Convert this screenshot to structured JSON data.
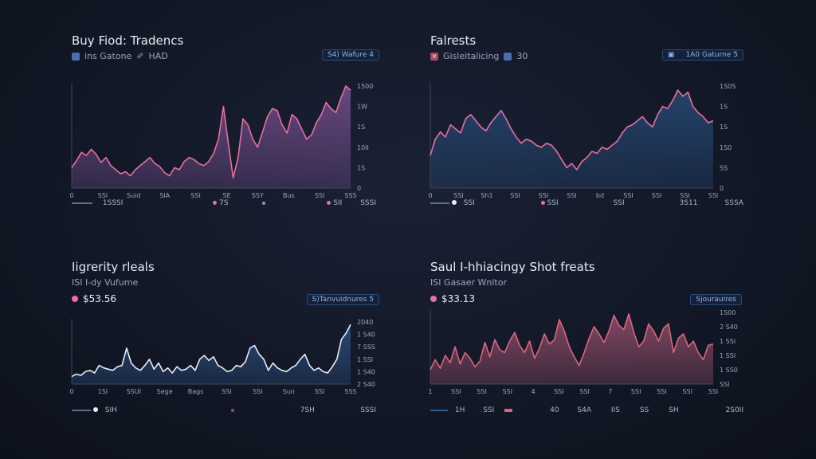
{
  "colors": {
    "pink": "#e86fa1",
    "white": "#e8ecf5",
    "red": "#d9667e",
    "blue": "#2f5c96"
  },
  "chart_data": [
    {
      "type": "area",
      "title": "Buy Fiod: Tradencs",
      "sub_label": "ins Gatone",
      "sub_extra": "HAD",
      "pill": "S4) Wafure 4",
      "x_ticks": [
        "0",
        "SSI",
        "Suid",
        "SIA",
        "SSI",
        "SE",
        "SSY",
        "Bus",
        "SSI",
        "SSS"
      ],
      "y_ticks": [
        "1500",
        "1W",
        "1S",
        "10II",
        "1S",
        "0"
      ],
      "legend": [
        "1SSSI",
        "7S",
        "SII"
      ],
      "legend_right": "SSSI",
      "color": "#e86fa1",
      "fill": "#6e4a86",
      "ylim": [
        0,
        100
      ],
      "values": [
        20,
        27,
        35,
        32,
        38,
        33,
        25,
        30,
        22,
        18,
        14,
        16,
        12,
        18,
        22,
        26,
        30,
        24,
        21,
        15,
        12,
        20,
        18,
        26,
        30,
        28,
        24,
        22,
        26,
        34,
        48,
        80,
        44,
        10,
        30,
        68,
        62,
        48,
        40,
        55,
        70,
        78,
        76,
        62,
        54,
        72,
        68,
        58,
        48,
        52,
        64,
        72,
        84,
        78,
        74,
        88,
        100,
        96
      ]
    },
    {
      "type": "area",
      "title": "Falrests",
      "sub_label": "Gisleitalicing",
      "sub_extra": "30",
      "pill": "1A0 Gaturne 5",
      "x_ticks": [
        "0",
        "SSI",
        "Sh1",
        "SSI",
        "SSI",
        "SSI",
        "bd",
        "SSI",
        "SSI",
        "SSI",
        "SSI"
      ],
      "y_ticks": [
        "1S0S",
        "1S",
        "1S",
        "1S0",
        "SS",
        "0"
      ],
      "legend": [
        "SSI",
        "SSI",
        "SSI",
        "3S11"
      ],
      "legend_right": "SSSA",
      "color": "#e86fa1",
      "fill": "#24456e",
      "ylim": [
        0,
        100
      ],
      "values": [
        32,
        48,
        55,
        50,
        62,
        58,
        54,
        68,
        72,
        66,
        60,
        56,
        64,
        70,
        76,
        68,
        58,
        50,
        44,
        48,
        46,
        42,
        40,
        44,
        42,
        36,
        28,
        20,
        24,
        18,
        26,
        30,
        36,
        34,
        40,
        38,
        42,
        46,
        54,
        60,
        62,
        66,
        70,
        64,
        60,
        72,
        80,
        78,
        86,
        96,
        90,
        94,
        80,
        74,
        70,
        64,
        66
      ]
    },
    {
      "type": "area",
      "title": "Iigrerity rleals",
      "sub_label": "ISI I-dy Vufume",
      "price": "$53.56",
      "pill": "S)Tanvuidnures 5",
      "x_ticks": [
        "0",
        "1SI",
        "SSUI",
        "Sege",
        "Bags",
        "SSI",
        "SSI",
        "Sun",
        "SSI",
        "SSS"
      ],
      "y_ticks": [
        "2040",
        "1 S40",
        "7 SSS",
        "1 SSI",
        "1 S40",
        "2 S40"
      ],
      "legend": [
        "SIH",
        "SSSI"
      ],
      "legend_mid": "7SH",
      "color": "#e8ecf5",
      "fill": "#2a4a7a",
      "ylim": [
        0,
        100
      ],
      "values": [
        12,
        16,
        14,
        20,
        22,
        18,
        30,
        26,
        24,
        22,
        28,
        30,
        58,
        34,
        26,
        22,
        30,
        40,
        24,
        34,
        20,
        26,
        18,
        28,
        22,
        24,
        30,
        22,
        40,
        46,
        38,
        44,
        30,
        26,
        20,
        22,
        30,
        28,
        36,
        58,
        62,
        48,
        40,
        22,
        34,
        26,
        22,
        20,
        26,
        30,
        40,
        48,
        30,
        22,
        26,
        20,
        18,
        28,
        40,
        72,
        82,
        96
      ]
    },
    {
      "type": "area",
      "title": "Saul I-hhiacingy Shot freats",
      "sub_label": "ISI Gasaer Wnltor",
      "price": "$33.13",
      "pill": "Sjourauires",
      "x_ticks": [
        "1",
        "SSI",
        "SSI",
        "SSI",
        "4",
        "SSI",
        "SSI",
        "7",
        "SSI",
        "SSI",
        "SSI",
        "SSI"
      ],
      "y_ticks": [
        "1S00",
        "2 S40",
        "1 SSI",
        "1 SSI",
        "1 SS0",
        "SSI"
      ],
      "legend": [
        "1H",
        "SSI",
        "40",
        "S4A",
        "IIS",
        "SS",
        "SH",
        "2S0II"
      ],
      "color": "#d9667e",
      "fill": "#8a4a66",
      "ylim": [
        0,
        100
      ],
      "values": [
        20,
        34,
        22,
        40,
        30,
        52,
        28,
        44,
        36,
        24,
        32,
        58,
        38,
        62,
        48,
        44,
        60,
        72,
        54,
        44,
        60,
        36,
        50,
        70,
        56,
        62,
        90,
        74,
        52,
        38,
        26,
        44,
        64,
        80,
        70,
        58,
        74,
        96,
        82,
        76,
        98,
        72,
        52,
        60,
        84,
        74,
        60,
        78,
        84,
        44,
        64,
        70,
        52,
        60,
        44,
        34,
        54,
        56
      ]
    }
  ]
}
